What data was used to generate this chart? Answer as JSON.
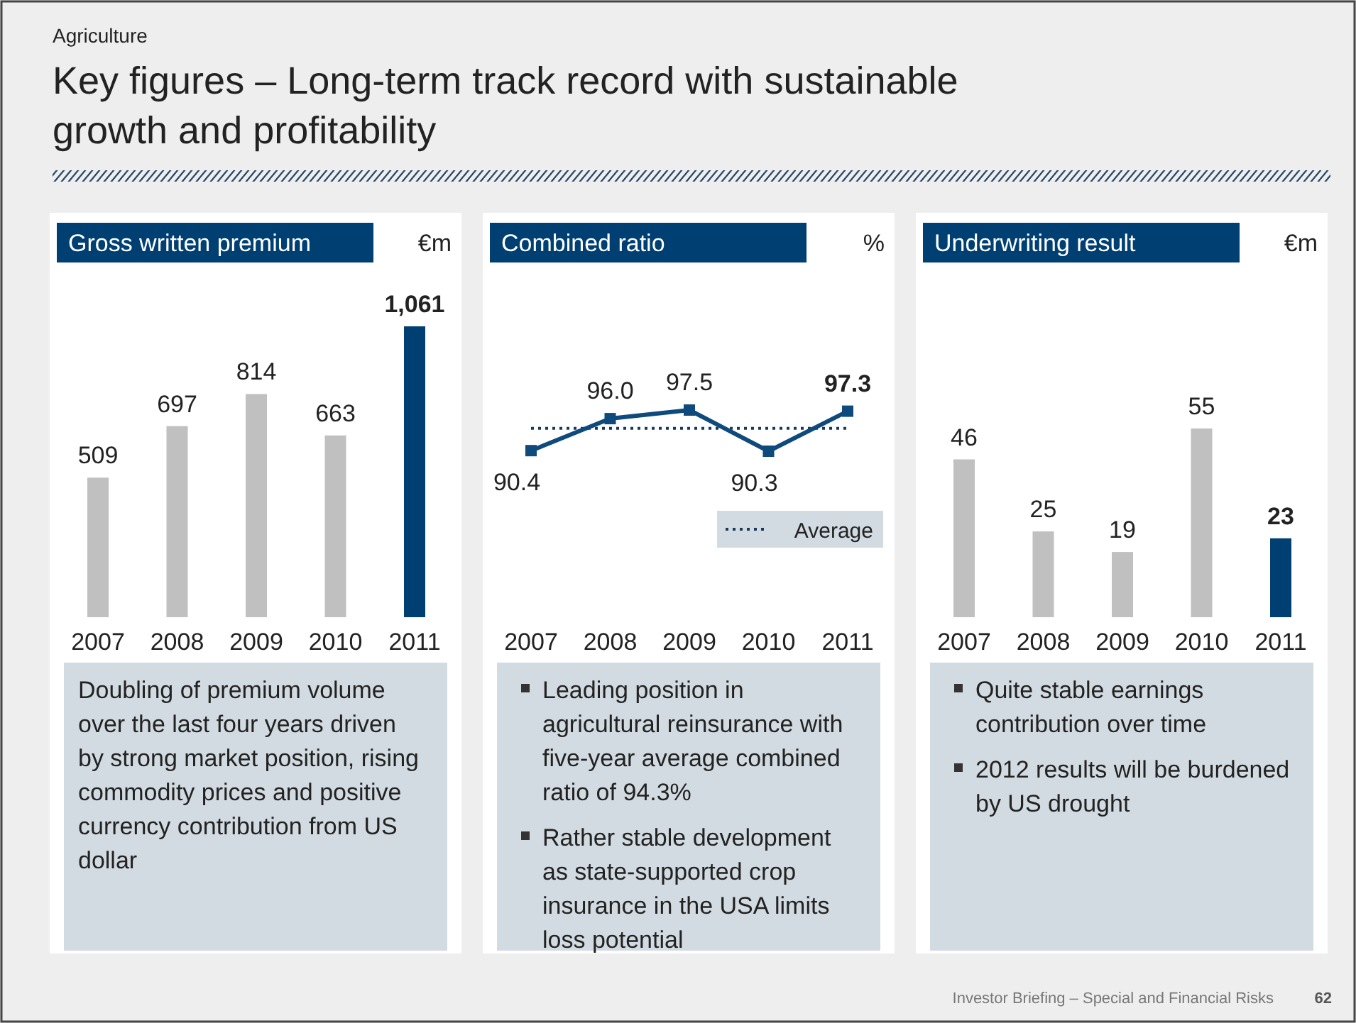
{
  "chart_data": [
    {
      "type": "bar",
      "title": "Gross written premium",
      "ylabel": "€m",
      "categories": [
        "2007",
        "2008",
        "2009",
        "2010",
        "2011"
      ],
      "values": [
        509,
        697,
        814,
        663,
        1061
      ],
      "colors": [
        "#c0c0c0",
        "#c0c0c0",
        "#c0c0c0",
        "#c0c0c0",
        "#003f72"
      ],
      "value_labels": [
        "509",
        "697",
        "814",
        "663",
        "1,061"
      ],
      "annotations": [
        "Agriculture",
        "Key figures – Long-term track record with sustainable growth and profitability",
        "Investor Briefing – Special and Financial Risks",
        "62",
        "Doubling of premium volume over the last four years driven by strong market position, rising commodity prices and positive currency contribution from US dollar"
      ]
    },
    {
      "type": "line",
      "title": "Combined ratio",
      "ylabel": "%",
      "categories": [
        "2007",
        "2008",
        "2009",
        "2010",
        "2011"
      ],
      "marker": "square",
      "series": [
        {
          "color": "#0f4a7c",
          "values": [
            90.4,
            96.0,
            97.5,
            90.3,
            97.3
          ],
          "value_labels": [
            "90.4",
            "96.0",
            "97.5",
            "90.3",
            "97.3"
          ]
        }
      ],
      "ref_lines": [
        {
          "axis": "y",
          "value": 94.3,
          "label": "Average",
          "color": "#1a3a5c",
          "line_style": "dotted"
        }
      ],
      "annotations": [
        "Leading position in agricultural reinsurance with five-year average combined ratio of 94.3%",
        "Rather stable development as state-supported crop insurance in the USA limits loss potential"
      ]
    },
    {
      "type": "bar",
      "title": "Underwriting result",
      "ylabel": "€m",
      "categories": [
        "2007",
        "2008",
        "2009",
        "2010",
        "2011"
      ],
      "values": [
        46,
        25,
        19,
        55,
        23
      ],
      "colors": [
        "#c0c0c0",
        "#c0c0c0",
        "#c0c0c0",
        "#c0c0c0",
        "#003f72"
      ],
      "data_labels": true,
      "annotations": [
        "Quite stable earnings contribution over time",
        "2012 results will be burdened by US drought"
      ]
    }
  ]
}
